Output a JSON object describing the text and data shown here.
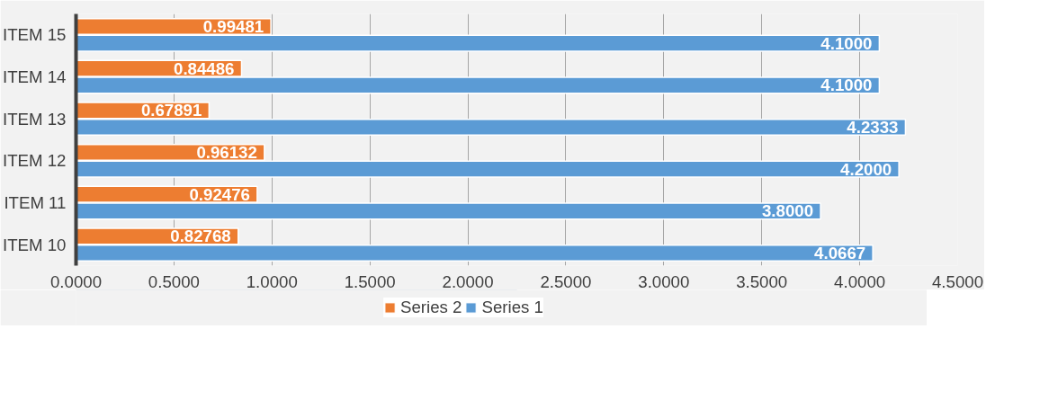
{
  "chart_data": {
    "type": "bar",
    "orientation": "horizontal",
    "categories": [
      "ITEM 15",
      "ITEM 14",
      "ITEM 13",
      "ITEM 12",
      "ITEM 11",
      "ITEM 10"
    ],
    "series": [
      {
        "name": "Series 2",
        "color": "#ed7d31",
        "values": [
          0.99481,
          0.84486,
          0.67891,
          0.96132,
          0.92476,
          0.82768
        ],
        "value_labels": [
          "0.99481",
          "0.84486",
          "0.67891",
          "0.96132",
          "0.92476",
          "0.82768"
        ]
      },
      {
        "name": "Series 1",
        "color": "#5b9bd5",
        "values": [
          4.1,
          4.1,
          4.2333,
          4.2,
          3.8,
          4.0667
        ],
        "value_labels": [
          "4.1000",
          "4.1000",
          "4.2333",
          "4.2000",
          "3.8000",
          "4.0667"
        ]
      }
    ],
    "xlim": [
      0,
      4.5
    ],
    "xticks": [
      {
        "value": 0,
        "label": "0.0000"
      },
      {
        "value": 0.5,
        "label": "0.5000"
      },
      {
        "value": 1,
        "label": "1.0000"
      },
      {
        "value": 1.5,
        "label": "1.5000"
      },
      {
        "value": 2,
        "label": "2.0000"
      },
      {
        "value": 2.5,
        "label": "2.5000"
      },
      {
        "value": 3,
        "label": "3.0000"
      },
      {
        "value": 3.5,
        "label": "3.5000"
      },
      {
        "value": 4,
        "label": "4.0000"
      },
      {
        "value": 4.5,
        "label": "4.5000"
      }
    ],
    "grid": "x",
    "legend": "bottom"
  }
}
